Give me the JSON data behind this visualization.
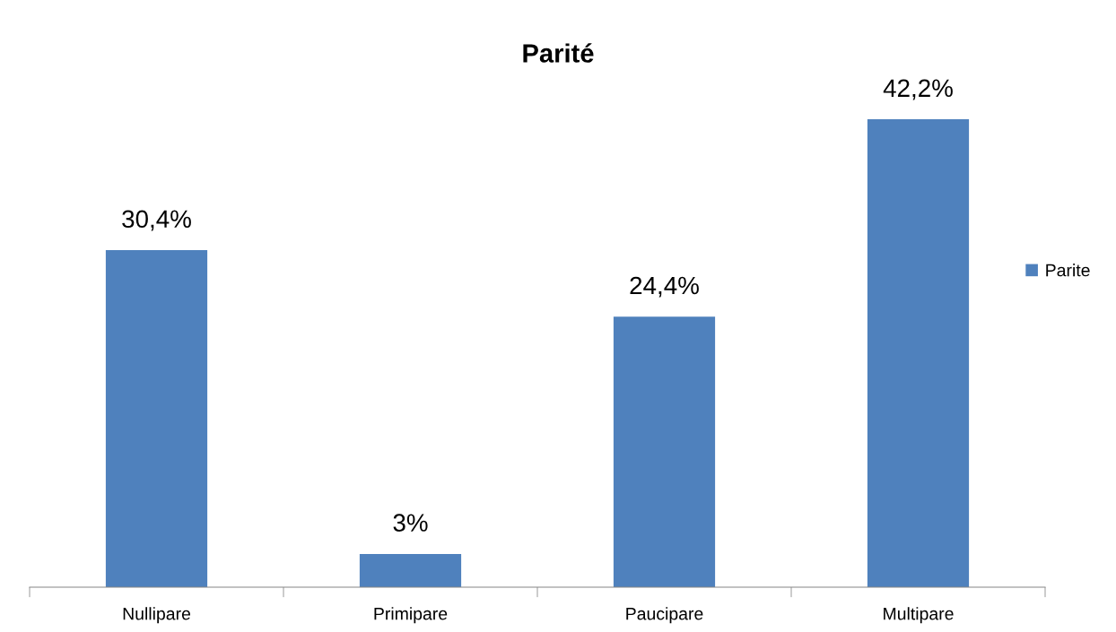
{
  "chart_data": {
    "type": "bar",
    "title": "Parité",
    "categories": [
      "Nullipare",
      "Primipare",
      "Paucipare",
      "Multipare"
    ],
    "series": [
      {
        "name": "Parite",
        "color": "#4f81bd",
        "values": [
          30.4,
          3,
          24.4,
          42.2
        ],
        "value_labels": [
          "30,4%",
          "3%",
          "24,4%",
          "42,2%"
        ]
      }
    ],
    "legend": "right",
    "grid": false
  }
}
